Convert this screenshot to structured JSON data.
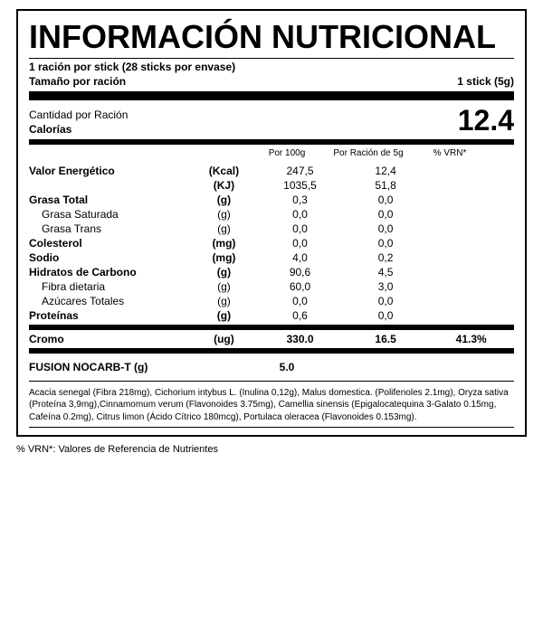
{
  "title": "INFORMACIÓN NUTRICIONAL",
  "serving": {
    "line1": "1 ración por stick (28 sticks por envase)",
    "line2_left": "Tamaño por ración",
    "line2_right": "1 stick (5g)"
  },
  "calories": {
    "label1": "Cantidad por Ración",
    "label2": "Calorías",
    "value": "12.4"
  },
  "columns": {
    "per100g": "Por 100g",
    "perServing": "Por Ración de 5g",
    "vrn": "% VRN*"
  },
  "rows": [
    {
      "name": "Valor Energético",
      "unit": "(Kcal)",
      "per100g": "247,5",
      "perServing": "12,4",
      "vrn": "",
      "bold": true,
      "sub": false
    },
    {
      "name": "",
      "unit": "(KJ)",
      "per100g": "1035,5",
      "perServing": "51,8",
      "vrn": "",
      "bold": true,
      "sub": false
    },
    {
      "name": "Grasa Total",
      "unit": "(g)",
      "per100g": "0,3",
      "perServing": "0,0",
      "vrn": "",
      "bold": true,
      "sub": false
    },
    {
      "name": "Grasa Saturada",
      "unit": "(g)",
      "per100g": "0,0",
      "perServing": "0,0",
      "vrn": "",
      "bold": false,
      "sub": true
    },
    {
      "name": "Grasa Trans",
      "unit": "(g)",
      "per100g": "0,0",
      "perServing": "0,0",
      "vrn": "",
      "bold": false,
      "sub": true
    },
    {
      "name": "Colesterol",
      "unit": "(mg)",
      "per100g": "0,0",
      "perServing": "0,0",
      "vrn": "",
      "bold": true,
      "sub": false
    },
    {
      "name": "Sodio",
      "unit": "(mg)",
      "per100g": "4,0",
      "perServing": "0,2",
      "vrn": "",
      "bold": true,
      "sub": false
    },
    {
      "name": "Hidratos de Carbono",
      "unit": "(g)",
      "per100g": "90,6",
      "perServing": "4,5",
      "vrn": "",
      "bold": true,
      "sub": false
    },
    {
      "name": "Fibra dietaria",
      "unit": "(g)",
      "per100g": "60,0",
      "perServing": "3,0",
      "vrn": "",
      "bold": false,
      "sub": true
    },
    {
      "name": "Azúcares Totales",
      "unit": "(g)",
      "per100g": "0,0",
      "perServing": "0,0",
      "vrn": "",
      "bold": false,
      "sub": true
    },
    {
      "name": "Proteínas",
      "unit": "(g)",
      "per100g": "0,6",
      "perServing": "0,0",
      "vrn": "",
      "bold": true,
      "sub": false
    }
  ],
  "cromo": {
    "name": "Cromo",
    "unit": "(ug)",
    "per100g": "330.0",
    "perServing": "16.5",
    "vrn": "41.3%"
  },
  "fusion": {
    "name": "FUSION NOCARB-T (g)",
    "value": "5.0"
  },
  "ingredients": "Acacia senegal (Fibra 218mg), Cichorium intybus L. (Inulina 0,12g), Malus domestica. (Polifenoles 2.1mg), Oryza sativa (Proteína 3,9mg),Cinnamomum verum (Flavonoides 3.75mg), Camellia sinensis (Epigalocatequina 3-Galato 0.15mg, Cafeína 0.2mg), Citrus limon (Ácido Cítrico 180mcg), Portulaca oleracea (Flavonoides 0.153mg).",
  "footnote": "% VRN*: Valores de Referencia de Nutrientes"
}
